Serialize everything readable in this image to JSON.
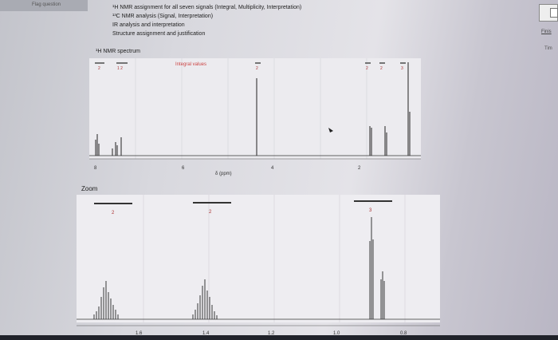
{
  "header": {
    "flag_label": "Flag question",
    "instructions": [
      "¹H NMR assignment for all seven signals (Integral, Multiplicity, Interpretation)",
      "¹³C NMR analysis (Signal, Interpretation)",
      "IR analysis and interpretation",
      "Structure assignment and justification"
    ],
    "finish_label": "Finis",
    "time_label": "Tim"
  },
  "spectrum": {
    "title": "¹H NMR spectrum",
    "integral_label": "Integral values",
    "integrals_top": [
      "2",
      "1 2",
      "2",
      "2",
      "2",
      "3"
    ],
    "x_ticks": [
      "8",
      "6",
      "4",
      "2"
    ],
    "x_label": "δ (ppm)"
  },
  "zoom": {
    "title": "Zoom",
    "integrals": [
      "2",
      "2",
      "3"
    ],
    "x_ticks": [
      "1.6",
      "1.4",
      "1.2",
      "1.0",
      "0.8"
    ]
  }
}
